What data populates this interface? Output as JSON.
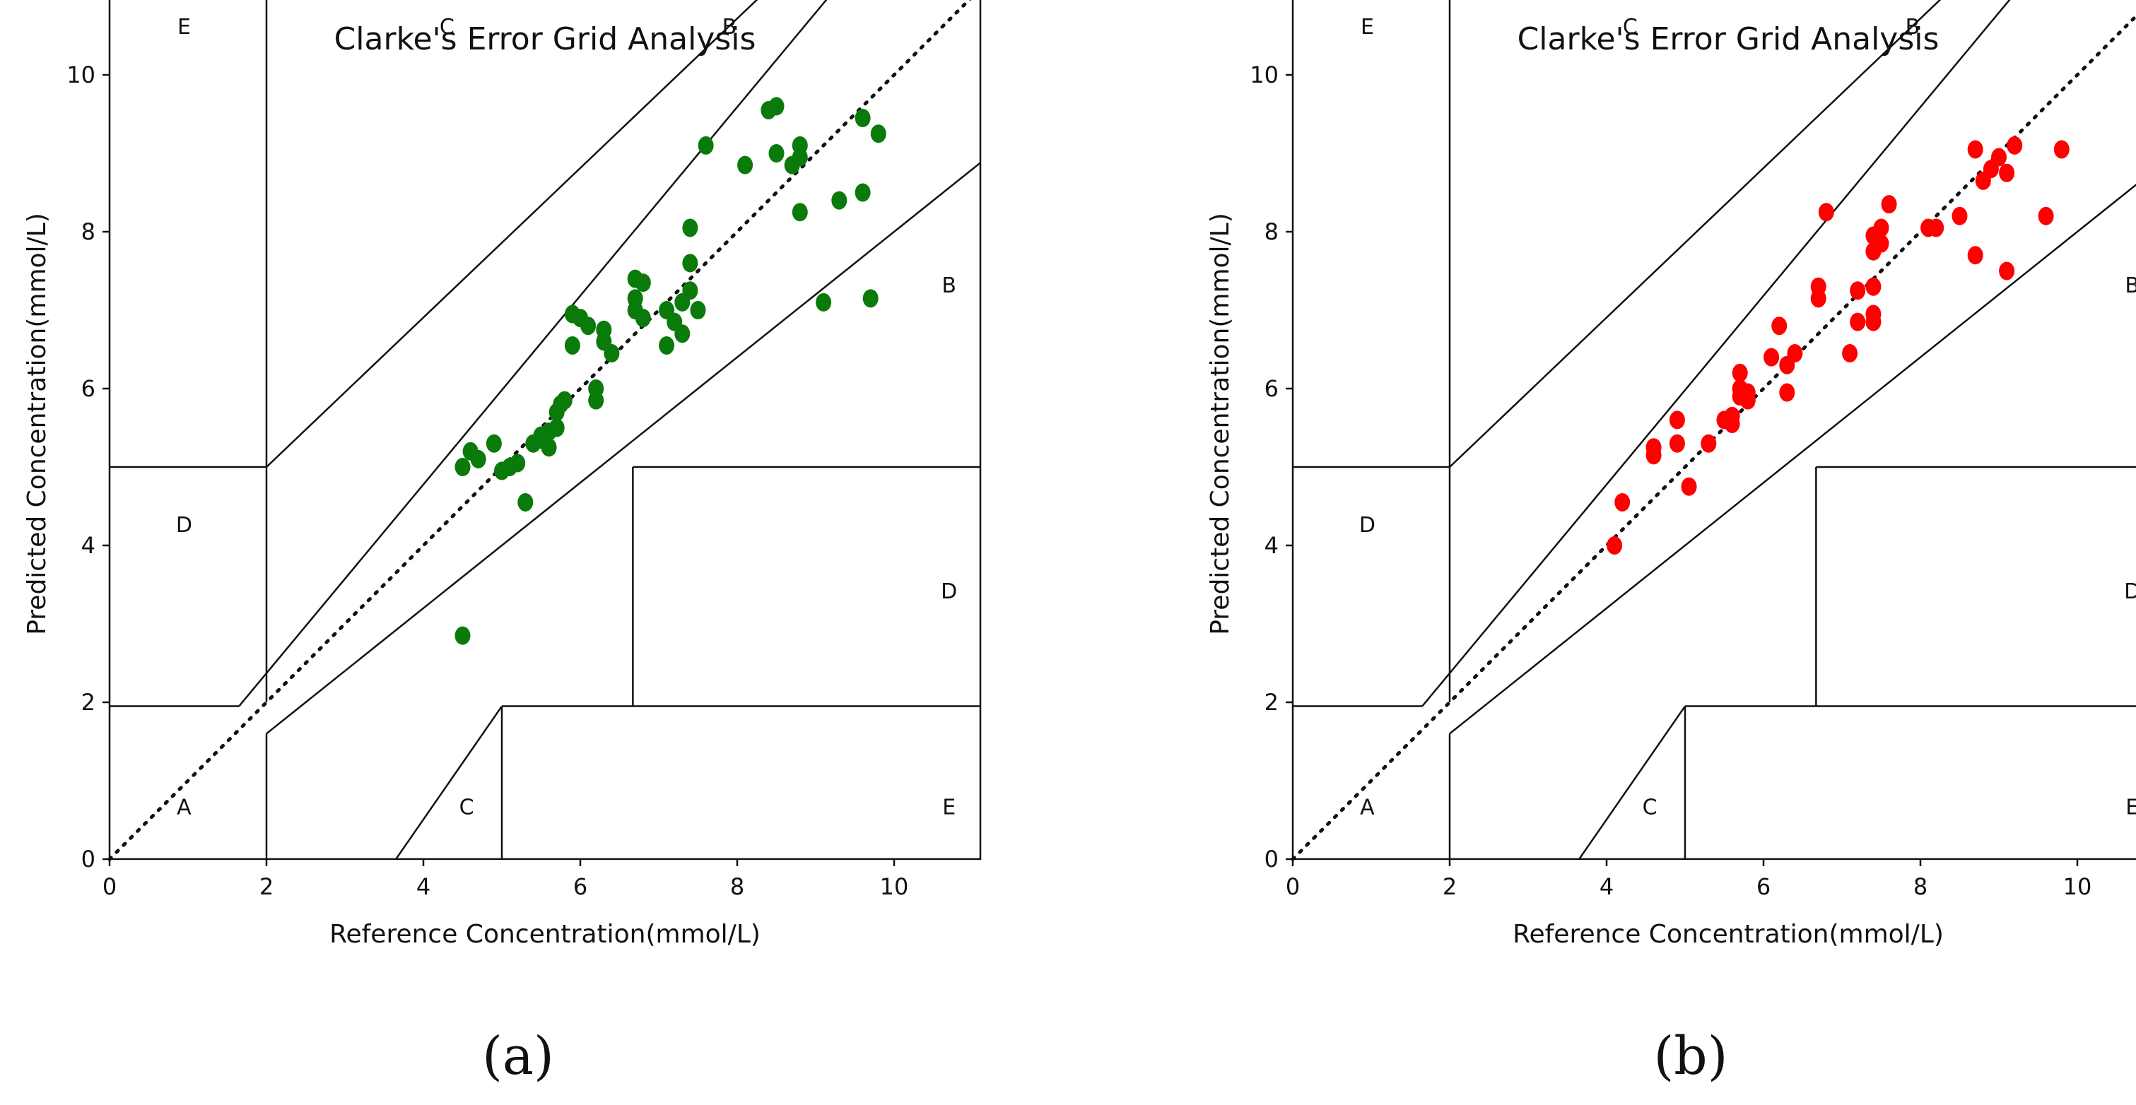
{
  "chart_data": [
    {
      "type": "scatter",
      "panel_label": "(a)",
      "title": "Clarke's Error Grid Analysis",
      "xlabel": "Reference Concentration(mmol/L)",
      "ylabel": "Predicted Concentration(mmol/L)",
      "xlim": [
        0,
        11.1
      ],
      "ylim": [
        0,
        11.1
      ],
      "xticks": [
        0,
        2,
        4,
        6,
        8,
        10
      ],
      "yticks": [
        0,
        2,
        4,
        6,
        8,
        10
      ],
      "grid": false,
      "marker_color": "#0a7a0a",
      "zone_labels": [
        {
          "text": "E",
          "x": 0.95,
          "y": 10.6
        },
        {
          "text": "C",
          "x": 4.3,
          "y": 10.6
        },
        {
          "text": "B",
          "x": 7.9,
          "y": 10.6
        },
        {
          "text": "D",
          "x": 0.95,
          "y": 4.25
        },
        {
          "text": "B",
          "x": 10.7,
          "y": 7.3
        },
        {
          "text": "D",
          "x": 10.7,
          "y": 3.4
        },
        {
          "text": "A",
          "x": 0.95,
          "y": 0.65
        },
        {
          "text": "C",
          "x": 4.55,
          "y": 0.65
        },
        {
          "text": "E",
          "x": 10.7,
          "y": 0.65
        }
      ],
      "x": [
        4.5,
        4.6,
        4.7,
        4.9,
        5.0,
        5.1,
        5.2,
        5.3,
        5.4,
        5.5,
        5.5,
        5.6,
        5.6,
        5.7,
        5.7,
        5.75,
        5.8,
        5.9,
        5.9,
        6.0,
        6.1,
        6.2,
        6.2,
        6.3,
        6.3,
        6.4,
        6.7,
        6.7,
        6.7,
        6.8,
        6.8,
        7.1,
        7.1,
        7.2,
        7.3,
        7.3,
        7.4,
        7.4,
        7.4,
        7.5,
        7.6,
        8.1,
        8.4,
        8.5,
        8.5,
        8.7,
        8.8,
        8.8,
        8.8,
        9.3,
        9.6,
        9.6,
        9.7,
        9.8,
        9.1,
        4.5
      ],
      "y": [
        5.0,
        5.2,
        5.1,
        5.3,
        4.95,
        5.0,
        5.05,
        4.55,
        5.3,
        5.35,
        5.4,
        5.25,
        5.45,
        5.5,
        5.7,
        5.8,
        5.85,
        6.55,
        6.95,
        6.9,
        6.8,
        6.0,
        5.85,
        6.6,
        6.75,
        6.45,
        7.4,
        7.15,
        7.0,
        6.9,
        7.35,
        7.0,
        6.55,
        6.85,
        6.7,
        7.1,
        7.25,
        7.6,
        8.05,
        7.0,
        9.1,
        8.85,
        9.55,
        9.6,
        9.0,
        8.85,
        9.1,
        8.95,
        8.25,
        8.4,
        8.5,
        9.45,
        7.15,
        9.25,
        7.1,
        2.85
      ]
    },
    {
      "type": "scatter",
      "panel_label": "(b)",
      "title": "Clarke's Error Grid Analysis",
      "xlabel": "Reference Concentration(mmol/L)",
      "ylabel": "Predicted Concentration(mmol/L)",
      "xlim": [
        0,
        11.1
      ],
      "ylim": [
        0,
        11.1
      ],
      "xticks": [
        0,
        2,
        4,
        6,
        8,
        10
      ],
      "yticks": [
        0,
        2,
        4,
        6,
        8,
        10
      ],
      "grid": false,
      "marker_color": "#ff0000",
      "zone_labels": [
        {
          "text": "E",
          "x": 0.95,
          "y": 10.6
        },
        {
          "text": "C",
          "x": 4.3,
          "y": 10.6
        },
        {
          "text": "B",
          "x": 7.9,
          "y": 10.6
        },
        {
          "text": "D",
          "x": 0.95,
          "y": 4.25
        },
        {
          "text": "B",
          "x": 10.7,
          "y": 7.3
        },
        {
          "text": "D",
          "x": 10.7,
          "y": 3.4
        },
        {
          "text": "A",
          "x": 0.95,
          "y": 0.65
        },
        {
          "text": "C",
          "x": 4.55,
          "y": 0.65
        },
        {
          "text": "E",
          "x": 10.7,
          "y": 0.65
        }
      ],
      "x": [
        4.1,
        4.2,
        4.6,
        4.6,
        4.9,
        4.9,
        5.05,
        5.3,
        5.5,
        5.6,
        5.6,
        5.7,
        5.7,
        5.7,
        5.8,
        5.8,
        6.1,
        6.2,
        6.3,
        6.3,
        6.4,
        6.7,
        6.7,
        6.8,
        7.1,
        7.2,
        7.2,
        7.4,
        7.4,
        7.4,
        7.4,
        7.4,
        7.5,
        7.5,
        7.6,
        8.1,
        8.2,
        8.5,
        8.7,
        8.7,
        8.8,
        8.9,
        9.0,
        9.1,
        9.1,
        9.2,
        9.6,
        9.8
      ],
      "y": [
        4.0,
        4.55,
        5.15,
        5.25,
        5.3,
        5.6,
        4.75,
        5.3,
        5.6,
        5.65,
        5.55,
        5.9,
        6.0,
        6.2,
        5.85,
        5.95,
        6.4,
        6.8,
        6.3,
        5.95,
        6.45,
        7.3,
        7.15,
        8.25,
        6.45,
        6.85,
        7.25,
        6.95,
        6.85,
        7.3,
        7.75,
        7.95,
        8.05,
        7.85,
        8.35,
        8.05,
        8.05,
        8.2,
        9.05,
        7.7,
        8.65,
        8.8,
        8.95,
        8.75,
        7.5,
        9.1,
        8.2,
        9.05
      ]
    }
  ]
}
